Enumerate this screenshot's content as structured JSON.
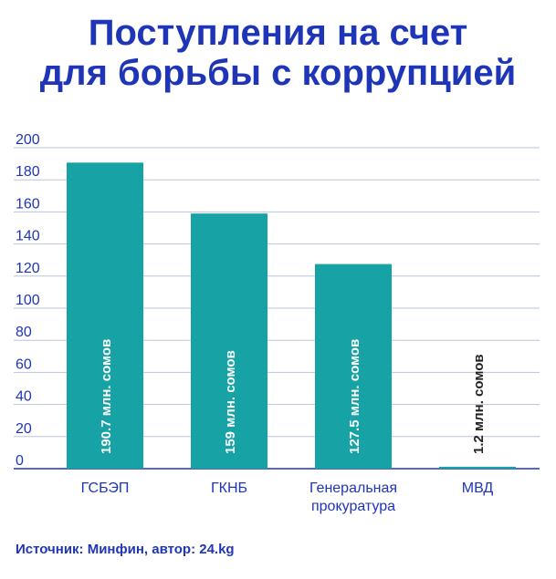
{
  "chart_data": {
    "type": "bar",
    "title_lines": [
      "Поступления на счет",
      "для борьбы с коррупцией"
    ],
    "categories": [
      [
        "ГСБЭП"
      ],
      [
        "ГКНБ"
      ],
      [
        "Генеральная",
        "прокуратура"
      ],
      [
        "МВД"
      ]
    ],
    "values": [
      190.7,
      159,
      127.5,
      1.2
    ],
    "data_labels": [
      "190.7 млн. сомов",
      "159 млн. сомов",
      "127.5 млн. сомов",
      "1.2 млн. сомов"
    ],
    "yticks": [
      "0",
      "20",
      "40",
      "60",
      "80",
      "100",
      "120",
      "140",
      "160",
      "180",
      "200"
    ],
    "ylim": [
      0,
      200
    ],
    "grid": true,
    "bar_color": "#17a3a5",
    "grid_color": "#b7c3dd",
    "axis_color": "#1f35b8"
  },
  "source": "Источник: Минфин, автор: 24.kg"
}
